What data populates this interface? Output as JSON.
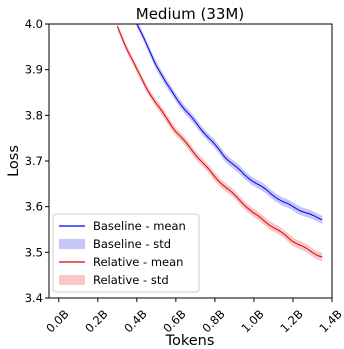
{
  "chart_data": {
    "type": "line",
    "title": "Medium (33M)",
    "xlabel": "Tokens",
    "ylabel": "Loss",
    "xlim": [
      -0.05,
      1.4
    ],
    "ylim": [
      3.4,
      4.0
    ],
    "xticks": [
      0.0,
      0.2,
      0.4,
      0.6,
      0.8,
      1.0,
      1.2,
      1.4
    ],
    "xtick_labels": [
      "0.0B",
      "0.2B",
      "0.4B",
      "0.6B",
      "0.8B",
      "1.0B",
      "1.2B",
      "1.4B"
    ],
    "yticks": [
      3.4,
      3.5,
      3.6,
      3.7,
      3.8,
      3.9,
      4.0
    ],
    "ytick_labels": [
      "3.4",
      "3.5",
      "3.6",
      "3.7",
      "3.8",
      "3.9",
      "4.0"
    ],
    "grid": false,
    "legend_position": "lower-left",
    "legend": [
      {
        "label": "Baseline - mean",
        "kind": "line",
        "color": "#0000ff"
      },
      {
        "label": "Baseline - std",
        "kind": "band",
        "color": "#c6c6f7"
      },
      {
        "label": "Relative - mean",
        "kind": "line",
        "color": "#e00000"
      },
      {
        "label": "Relative - std",
        "kind": "band",
        "color": "#f7c6c6"
      }
    ],
    "series": [
      {
        "name": "Baseline",
        "color": "#0000ff",
        "band_color": "#c6c6f7",
        "x": [
          0.4,
          0.45,
          0.5,
          0.55,
          0.6,
          0.65,
          0.7,
          0.75,
          0.8,
          0.85,
          0.9,
          0.95,
          1.0,
          1.05,
          1.1,
          1.15,
          1.2,
          1.25,
          1.3,
          1.35
        ],
        "mean": [
          4.0,
          3.955,
          3.91,
          3.87,
          3.84,
          3.81,
          3.785,
          3.76,
          3.735,
          3.71,
          3.69,
          3.67,
          3.655,
          3.64,
          3.625,
          3.61,
          3.6,
          3.59,
          3.58,
          3.572
        ],
        "std": [
          0.008,
          0.008,
          0.009,
          0.009,
          0.009,
          0.009,
          0.009,
          0.009,
          0.009,
          0.009,
          0.009,
          0.009,
          0.009,
          0.009,
          0.009,
          0.009,
          0.009,
          0.009,
          0.009,
          0.009
        ]
      },
      {
        "name": "Relative",
        "color": "#e00000",
        "band_color": "#f7c6c6",
        "x": [
          0.3,
          0.35,
          0.4,
          0.45,
          0.5,
          0.55,
          0.6,
          0.65,
          0.7,
          0.75,
          0.8,
          0.85,
          0.9,
          0.95,
          1.0,
          1.05,
          1.1,
          1.15,
          1.2,
          1.25,
          1.3,
          1.35
        ],
        "mean": [
          3.995,
          3.945,
          3.9,
          3.86,
          3.825,
          3.795,
          3.765,
          3.74,
          3.715,
          3.69,
          3.665,
          3.645,
          3.625,
          3.605,
          3.585,
          3.57,
          3.555,
          3.54,
          3.525,
          3.512,
          3.5,
          3.49
        ],
        "std": [
          0.008,
          0.008,
          0.008,
          0.008,
          0.009,
          0.009,
          0.009,
          0.009,
          0.009,
          0.009,
          0.009,
          0.009,
          0.009,
          0.009,
          0.009,
          0.009,
          0.009,
          0.009,
          0.009,
          0.009,
          0.009,
          0.009
        ]
      }
    ]
  }
}
